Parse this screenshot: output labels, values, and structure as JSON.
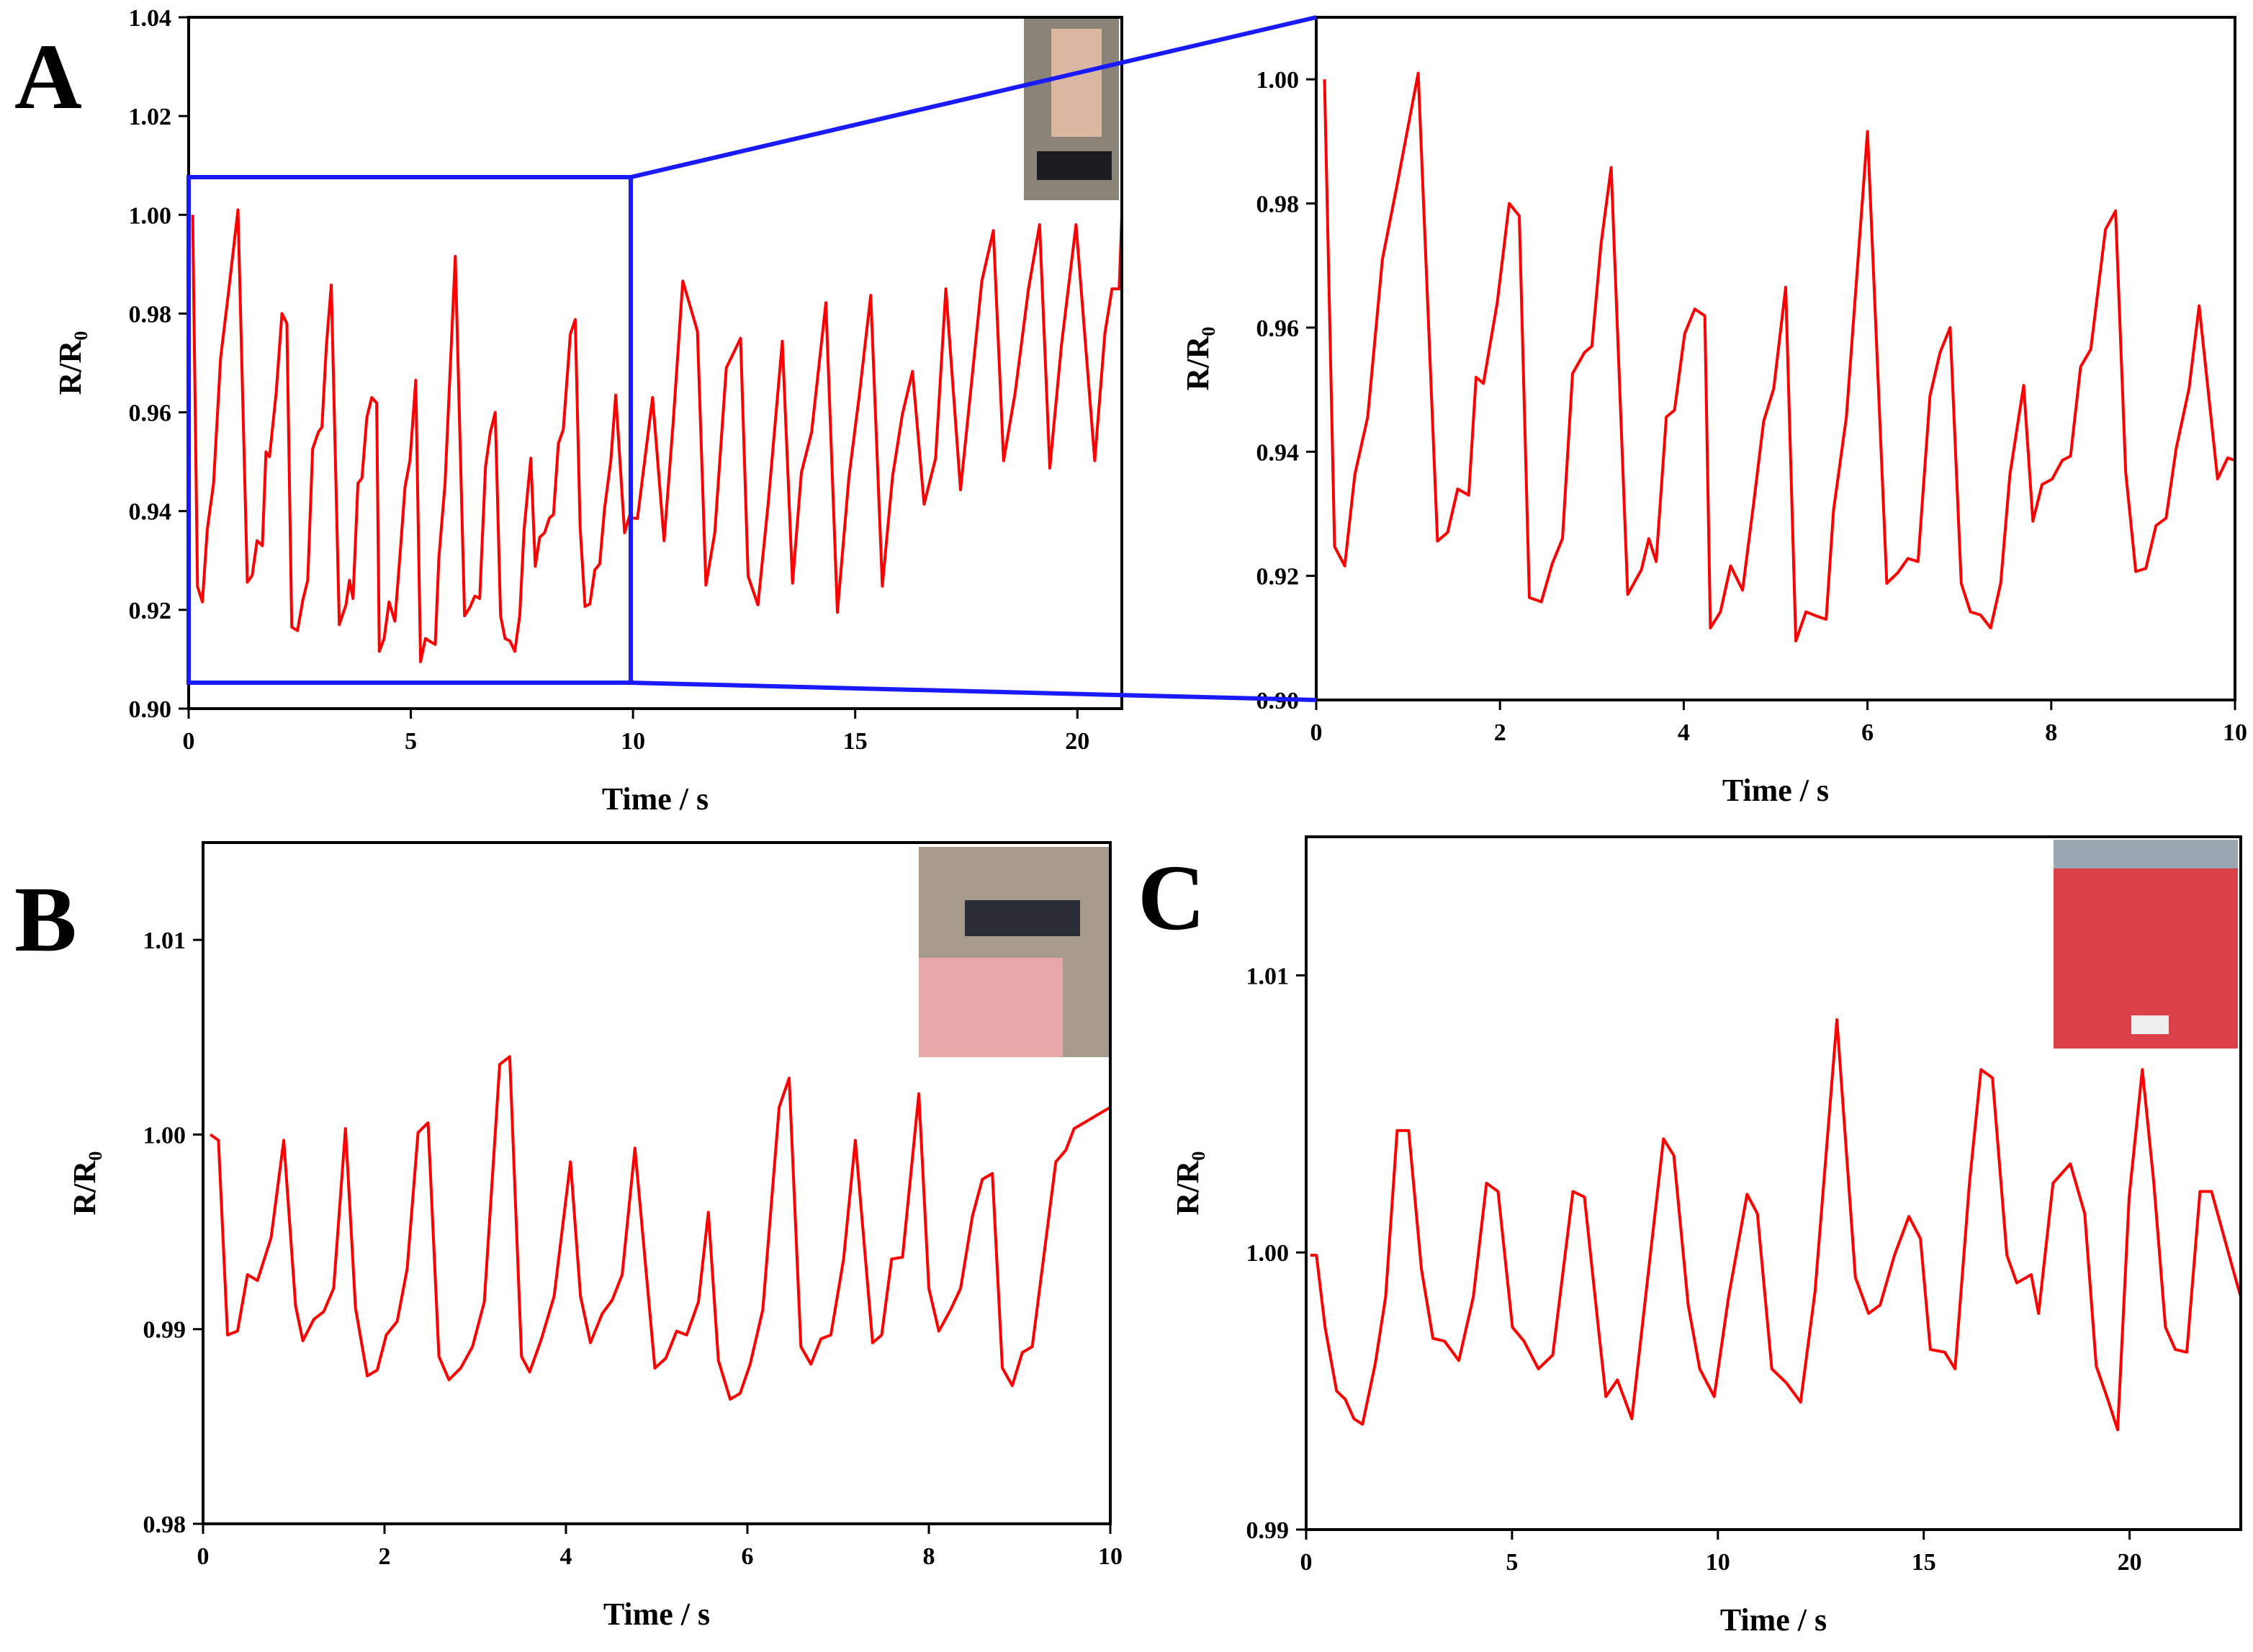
{
  "chart_data": [
    {
      "type": "line",
      "panel": "A",
      "xlabel": "Time / s",
      "ylabel": "R/R₀",
      "xlim": [
        0,
        21
      ],
      "ylim": [
        0.9,
        1.04
      ],
      "xticks": [
        0,
        5,
        10,
        15,
        20
      ],
      "yticks": [
        {
          "value": 0.9,
          "label": "0.90"
        },
        0.92,
        0.94,
        0.96,
        0.98,
        {
          "value": 1.0,
          "label": "1.00"
        },
        1.02,
        1.04
      ],
      "series": [
        {
          "color": "#ff0000",
          "x": [
            0.09,
            0.2,
            0.31,
            0.42,
            0.56,
            0.72,
            0.88,
            1.11,
            1.32,
            1.43,
            1.54,
            1.66,
            1.74,
            1.82,
            1.97,
            2.1,
            2.21,
            2.32,
            2.45,
            2.57,
            2.68,
            2.79,
            2.92,
            3.0,
            3.1,
            3.21,
            3.39,
            3.54,
            3.62,
            3.7,
            3.81,
            3.9,
            4.01,
            4.12,
            4.23,
            4.29,
            4.4,
            4.51,
            4.64,
            4.76,
            4.87,
            4.98,
            5.11,
            5.22,
            5.33,
            5.45,
            5.55,
            5.63,
            5.77,
            6.0,
            6.21,
            6.33,
            6.44,
            6.55,
            6.68,
            6.79,
            6.9,
            7.02,
            7.12,
            7.23,
            7.34,
            7.45,
            7.55,
            7.7,
            7.8,
            7.9,
            8.01,
            8.12,
            8.21,
            8.32,
            8.43,
            8.59,
            8.7,
            8.81,
            8.92,
            9.03,
            9.14,
            9.25,
            9.36,
            9.5,
            9.61,
            9.81,
            9.92,
            10,
            10.1,
            10.44,
            10.7,
            10.9,
            11.12,
            11.45,
            11.64,
            11.84,
            12.1,
            12.42,
            12.59,
            12.81,
            13.04,
            13.36,
            13.59,
            13.79,
            14.02,
            14.34,
            14.6,
            14.86,
            15.09,
            15.35,
            15.61,
            15.84,
            16.06,
            16.29,
            16.55,
            16.81,
            17.04,
            17.37,
            17.63,
            17.85,
            18.11,
            18.34,
            18.6,
            18.9,
            19.15,
            19.38,
            19.64,
            19.97,
            20.39,
            20.62,
            20.78,
            20.94,
            21
          ],
          "values": [
            1.0,
            0.9247,
            0.9216,
            0.9363,
            0.9456,
            0.971,
            0.983,
            1.001,
            0.9256,
            0.927,
            0.934,
            0.933,
            0.952,
            0.951,
            0.964,
            0.98,
            0.978,
            0.9165,
            0.9158,
            0.922,
            0.926,
            0.9526,
            0.956,
            0.957,
            0.9735,
            0.9858,
            0.917,
            0.921,
            0.926,
            0.9223,
            0.9456,
            0.9467,
            0.959,
            0.963,
            0.9619,
            0.9116,
            0.9142,
            0.9216,
            0.9177,
            0.9316,
            0.9449,
            0.9502,
            0.9665,
            0.9095,
            0.9142,
            0.9135,
            0.913,
            0.9305,
            0.9456,
            0.9916,
            0.9188,
            0.9205,
            0.9228,
            0.9223,
            0.949,
            0.956,
            0.96,
            0.9188,
            0.9142,
            0.9137,
            0.9116,
            0.9188,
            0.9363,
            0.9507,
            0.9288,
            0.9347,
            0.9356,
            0.9386,
            0.9393,
            0.9537,
            0.9565,
            0.9758,
            0.9788,
            0.9367,
            0.9207,
            0.9212,
            0.9281,
            0.9293,
            0.9405,
            0.9502,
            0.9635,
            0.9356,
            0.939,
            0.9386,
            0.9385,
            0.963,
            0.934,
            0.9575,
            0.9866,
            0.9764,
            0.925,
            0.9356,
            0.969,
            0.975,
            0.9268,
            0.921,
            0.9414,
            0.9744,
            0.9254,
            0.9478,
            0.956,
            0.9822,
            0.9195,
            0.947,
            0.9633,
            0.9837,
            0.9248,
            0.947,
            0.9595,
            0.9683,
            0.9414,
            0.9507,
            0.985,
            0.9443,
            0.967,
            0.9866,
            0.9968,
            0.9502,
            0.964,
            0.985,
            0.998,
            0.9487,
            0.9735,
            0.998,
            0.9502,
            0.976,
            0.985,
            0.985,
            0.9997
          ]
        }
      ]
    },
    {
      "type": "line",
      "xlabel": "Time / s",
      "ylabel": "R/R₀",
      "xlim": [
        0,
        10
      ],
      "ylim": [
        0.9,
        1.01
      ],
      "xticks": [
        0,
        2,
        4,
        6,
        8,
        10
      ],
      "yticks": [
        {
          "value": 0.9,
          "label": "0.90"
        },
        0.92,
        0.94,
        0.96,
        0.98,
        {
          "value": 1.0,
          "label": "1.00"
        }
      ],
      "series": [
        {
          "color": "#ff0000",
          "x": [
            0.09,
            0.2,
            0.31,
            0.42,
            0.56,
            0.72,
            0.88,
            1.11,
            1.32,
            1.43,
            1.54,
            1.66,
            1.74,
            1.82,
            1.97,
            2.1,
            2.21,
            2.32,
            2.45,
            2.57,
            2.68,
            2.79,
            2.92,
            3.0,
            3.1,
            3.21,
            3.39,
            3.54,
            3.62,
            3.7,
            3.81,
            3.9,
            4.01,
            4.12,
            4.23,
            4.29,
            4.4,
            4.51,
            4.64,
            4.76,
            4.87,
            4.98,
            5.11,
            5.22,
            5.33,
            5.45,
            5.55,
            5.63,
            5.77,
            6.0,
            6.21,
            6.33,
            6.44,
            6.55,
            6.68,
            6.79,
            6.9,
            7.02,
            7.12,
            7.23,
            7.34,
            7.45,
            7.55,
            7.7,
            7.8,
            7.9,
            8.01,
            8.12,
            8.21,
            8.32,
            8.43,
            8.59,
            8.7,
            8.81,
            8.92,
            9.03,
            9.14,
            9.25,
            9.36,
            9.5,
            9.61,
            9.81,
            9.92,
            10
          ],
          "values": [
            1.0,
            0.9247,
            0.9216,
            0.9363,
            0.9456,
            0.971,
            0.983,
            1.001,
            0.9256,
            0.927,
            0.934,
            0.933,
            0.952,
            0.951,
            0.964,
            0.98,
            0.978,
            0.9165,
            0.9158,
            0.922,
            0.926,
            0.9526,
            0.956,
            0.957,
            0.9735,
            0.9858,
            0.917,
            0.921,
            0.926,
            0.9223,
            0.9456,
            0.9467,
            0.959,
            0.963,
            0.9619,
            0.9116,
            0.9142,
            0.9216,
            0.9177,
            0.9316,
            0.9449,
            0.9502,
            0.9665,
            0.9095,
            0.9142,
            0.9135,
            0.913,
            0.9305,
            0.9456,
            0.9916,
            0.9188,
            0.9205,
            0.9228,
            0.9223,
            0.949,
            0.956,
            0.96,
            0.9188,
            0.9142,
            0.9137,
            0.9116,
            0.9188,
            0.9363,
            0.9507,
            0.9288,
            0.9347,
            0.9356,
            0.9386,
            0.9393,
            0.9537,
            0.9565,
            0.9758,
            0.9788,
            0.9367,
            0.9207,
            0.9212,
            0.9281,
            0.9293,
            0.9405,
            0.9502,
            0.9635,
            0.9356,
            0.939,
            0.9386
          ]
        }
      ]
    },
    {
      "type": "line",
      "panel": "B",
      "xlabel": "Time / s",
      "ylabel": "R/R₀",
      "xlim": [
        0,
        10
      ],
      "ylim": [
        0.98,
        1.015
      ],
      "xticks": [
        0,
        2,
        4,
        6,
        8,
        10
      ],
      "yticks": [
        0.98,
        0.99,
        {
          "value": 1.0,
          "label": "1.00"
        },
        1.01
      ],
      "series": [
        {
          "color": "#ff0000",
          "x": [
            0.08,
            0.17,
            0.27,
            0.38,
            0.49,
            0.6,
            0.75,
            0.89,
            1.02,
            1.1,
            1.22,
            1.33,
            1.44,
            1.57,
            1.68,
            1.81,
            1.92,
            2.02,
            2.14,
            2.25,
            2.37,
            2.48,
            2.6,
            2.71,
            2.84,
            2.97,
            3.1,
            3.27,
            3.38,
            3.51,
            3.6,
            3.73,
            3.87,
            4.05,
            4.16,
            4.27,
            4.4,
            4.51,
            4.62,
            4.76,
            4.98,
            5.1,
            5.22,
            5.33,
            5.46,
            5.57,
            5.68,
            5.81,
            5.92,
            6.03,
            6.17,
            6.35,
            6.46,
            6.59,
            6.7,
            6.81,
            6.92,
            7.06,
            7.19,
            7.38,
            7.48,
            7.59,
            7.71,
            7.89,
            8.0,
            8.11,
            8.24,
            8.35,
            8.48,
            8.59,
            8.7,
            8.81,
            8.92,
            9.03,
            9.14,
            9.4,
            9.51,
            9.6,
            10
          ],
          "values": [
            1.0,
            0.9997,
            0.9897,
            0.9899,
            0.9928,
            0.9925,
            0.9947,
            0.9997,
            0.9912,
            0.9894,
            0.9905,
            0.9909,
            0.9921,
            1.0003,
            0.9911,
            0.9876,
            0.9879,
            0.9897,
            0.9904,
            0.9931,
            1.0001,
            1.0006,
            0.9886,
            0.9874,
            0.988,
            0.9891,
            0.9914,
            1.0036,
            1.004,
            0.9886,
            0.9878,
            0.9895,
            0.9917,
            0.9986,
            0.9917,
            0.9893,
            0.9908,
            0.9915,
            0.9928,
            0.9993,
            0.988,
            0.9885,
            0.9899,
            0.9897,
            0.9914,
            0.996,
            0.9884,
            0.9864,
            0.9867,
            0.9882,
            0.991,
            1.0014,
            1.0029,
            0.9891,
            0.9882,
            0.9895,
            0.9897,
            0.9936,
            0.9997,
            0.9893,
            0.9897,
            0.9936,
            0.9937,
            1.0021,
            0.9921,
            0.9899,
            0.991,
            0.9921,
            0.9958,
            0.9977,
            0.998,
            0.988,
            0.9871,
            0.9888,
            0.9891,
            0.9986,
            0.9992,
            1.0003,
            1.0014
          ]
        }
      ]
    },
    {
      "type": "line",
      "panel": "C",
      "xlabel": "Time / s",
      "ylabel": "R/R₀",
      "xlim": [
        0,
        22.7
      ],
      "ylim": [
        0.99,
        1.015
      ],
      "xticks": [
        0,
        5,
        10,
        15,
        20
      ],
      "yticks": [
        0.99,
        {
          "value": 1.0,
          "label": "1.00"
        },
        1.01
      ],
      "series": [
        {
          "color": "#ff0000",
          "x": [
            0.1,
            0.25,
            0.46,
            0.74,
            0.95,
            1.16,
            1.37,
            1.68,
            1.93,
            2.21,
            2.49,
            2.8,
            3.08,
            3.36,
            3.71,
            4.06,
            4.38,
            4.66,
            5.01,
            5.29,
            5.64,
            5.99,
            6.48,
            6.76,
            7.11,
            7.28,
            7.56,
            7.91,
            8.26,
            8.68,
            8.93,
            9.28,
            9.56,
            9.91,
            10.26,
            10.71,
            10.96,
            11.31,
            11.66,
            12.01,
            12.36,
            12.89,
            13.34,
            13.66,
            13.94,
            14.29,
            14.64,
            14.92,
            15.16,
            15.51,
            15.76,
            16.11,
            16.39,
            16.67,
            17.02,
            17.26,
            17.61,
            17.79,
            18.14,
            18.56,
            18.91,
            19.19,
            19.47,
            19.71,
            19.99,
            20.31,
            20.59,
            20.87,
            21.11,
            21.39,
            21.71,
            21.99,
            22.51,
            22.7
          ],
          "values": [
            0.9999,
            0.9999,
            0.9973,
            0.995,
            0.9947,
            0.994,
            0.9938,
            0.996,
            0.9984,
            1.0044,
            1.0044,
            0.9994,
            0.9969,
            0.9968,
            0.9961,
            0.9984,
            1.0025,
            1.0022,
            0.9973,
            0.9968,
            0.9958,
            0.9963,
            1.0022,
            1.002,
            0.9971,
            0.9948,
            0.9954,
            0.994,
            0.9986,
            1.0041,
            1.0035,
            0.9981,
            0.9958,
            0.9948,
            0.9984,
            1.0021,
            1.0014,
            0.9958,
            0.9953,
            0.9946,
            0.9986,
            1.0084,
            0.9991,
            0.9978,
            0.9981,
            0.9999,
            1.0013,
            1.0005,
            0.9965,
            0.9964,
            0.9958,
            1.0025,
            1.0066,
            1.0063,
            0.9999,
            0.9989,
            0.9992,
            0.9978,
            1.0025,
            1.0032,
            1.0014,
            0.9959,
            0.9947,
            0.9936,
            1.002,
            1.0066,
            1.0025,
            0.9973,
            0.9965,
            0.9964,
            1.0022,
            1.0022,
            0.9994,
            0.9984
          ]
        }
      ]
    }
  ]
}
